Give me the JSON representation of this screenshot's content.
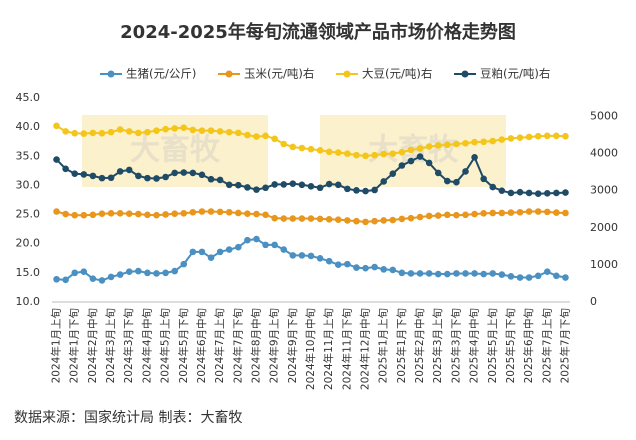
{
  "chart_data": {
    "type": "line",
    "title": "2024-2025年每旬流通领域产品市场价格走势图",
    "source": "数据来源：国家统计局  制表：大畜牧",
    "watermark": "大畜牧",
    "categories": [
      "2024年1月上旬",
      null,
      "2024年1月下旬",
      null,
      "2024年2月中旬",
      null,
      "2024年3月上旬",
      null,
      "2024年3月下旬",
      null,
      "2024年4月中旬",
      null,
      "2024年5月上旬",
      null,
      "2024年5月下旬",
      null,
      "2024年6月中旬",
      null,
      "2024年7月上旬",
      null,
      "2024年7月下旬",
      null,
      "2024年8月中旬",
      null,
      "2024年9月上旬",
      null,
      "2024年9月下旬",
      null,
      "2024年10月中旬",
      null,
      "2024年11月上旬",
      null,
      "2024年11月下旬",
      null,
      "2024年12月中旬",
      null,
      "2025年1月上旬",
      null,
      "2025年1月下旬",
      null,
      "2025年2月中旬",
      null,
      "2025年3月上旬",
      null,
      "2025年3月下旬",
      null,
      "2025年4月中旬",
      null,
      "2025年5月上旬",
      null,
      "2025年5月下旬",
      null,
      "2025年6月中旬",
      null,
      "2025年7月上旬",
      null,
      "2025年7月下旬"
    ],
    "series": [
      {
        "name": "生猪(元/公斤)",
        "color": "#4a90c2",
        "values": [
          13.9,
          13.8,
          15.0,
          15.2,
          14.0,
          13.7,
          14.3,
          14.7,
          15.2,
          15.3,
          15.0,
          14.9,
          15.0,
          15.3,
          16.5,
          18.6,
          18.6,
          17.6,
          18.6,
          19.0,
          19.4,
          20.6,
          20.8,
          19.8,
          19.8,
          19.0,
          18.0,
          18.0,
          17.9,
          17.5,
          17.0,
          16.4,
          16.5,
          15.9,
          15.8,
          16.0,
          15.6,
          15.5,
          15.0,
          14.9,
          14.9,
          14.9,
          14.8,
          14.8,
          14.9,
          14.9,
          14.9,
          14.8,
          14.9,
          14.7,
          14.4,
          14.2,
          14.2,
          14.5,
          15.2,
          14.5,
          14.2
        ]
      },
      {
        "name": "玉米(元/吨)右",
        "color": "#e8961c",
        "axis": "y2",
        "values": [
          2440,
          2370,
          2340,
          2340,
          2350,
          2380,
          2390,
          2390,
          2380,
          2370,
          2350,
          2340,
          2360,
          2380,
          2390,
          2420,
          2440,
          2440,
          2430,
          2420,
          2400,
          2380,
          2370,
          2350,
          2260,
          2250,
          2250,
          2250,
          2250,
          2240,
          2230,
          2220,
          2200,
          2180,
          2160,
          2180,
          2200,
          2210,
          2240,
          2260,
          2290,
          2320,
          2330,
          2350,
          2340,
          2350,
          2370,
          2390,
          2400,
          2400,
          2410,
          2420,
          2440,
          2440,
          2430,
          2410,
          2400
        ]
      },
      {
        "name": "大豆(元/吨)右",
        "color": "#f4c51a",
        "axis": "y2",
        "values": [
          4750,
          4600,
          4550,
          4540,
          4560,
          4550,
          4580,
          4650,
          4600,
          4560,
          4580,
          4620,
          4660,
          4680,
          4700,
          4640,
          4620,
          4620,
          4600,
          4580,
          4560,
          4500,
          4460,
          4480,
          4400,
          4260,
          4180,
          4150,
          4120,
          4090,
          4050,
          4030,
          4000,
          3960,
          3940,
          3960,
          3990,
          4000,
          4040,
          4100,
          4140,
          4190,
          4220,
          4240,
          4260,
          4280,
          4310,
          4320,
          4340,
          4380,
          4410,
          4430,
          4450,
          4470,
          4480,
          4480,
          4470
        ]
      },
      {
        "name": "豆粕(元/吨)右",
        "color": "#1f4b66",
        "axis": "y2",
        "values": [
          3840,
          3590,
          3460,
          3440,
          3400,
          3340,
          3350,
          3520,
          3560,
          3400,
          3340,
          3330,
          3370,
          3480,
          3490,
          3480,
          3430,
          3310,
          3290,
          3160,
          3150,
          3090,
          3030,
          3080,
          3170,
          3170,
          3190,
          3160,
          3120,
          3080,
          3180,
          3160,
          3050,
          3010,
          2990,
          3020,
          3250,
          3460,
          3680,
          3800,
          3920,
          3750,
          3480,
          3260,
          3230,
          3520,
          3900,
          3320,
          3100,
          3000,
          2940,
          2960,
          2940,
          2920,
          2930,
          2940,
          2950
        ]
      }
    ],
    "ylim": [
      10,
      45
    ],
    "yticks": [
      {
        "value": 10,
        "label": "10.0"
      },
      {
        "value": 15,
        "label": "15.0"
      },
      {
        "value": 20,
        "label": "20.0"
      },
      {
        "value": 25,
        "label": "25.0"
      },
      {
        "value": 30,
        "label": "30.0"
      },
      {
        "value": 35,
        "label": "35.0"
      },
      {
        "value": 40,
        "label": "40.0"
      },
      {
        "value": 45,
        "label": "45.0"
      }
    ],
    "y2lim": [
      0,
      5500
    ],
    "y2ticks": [
      0,
      1000,
      2000,
      3000,
      4000,
      5000
    ]
  }
}
